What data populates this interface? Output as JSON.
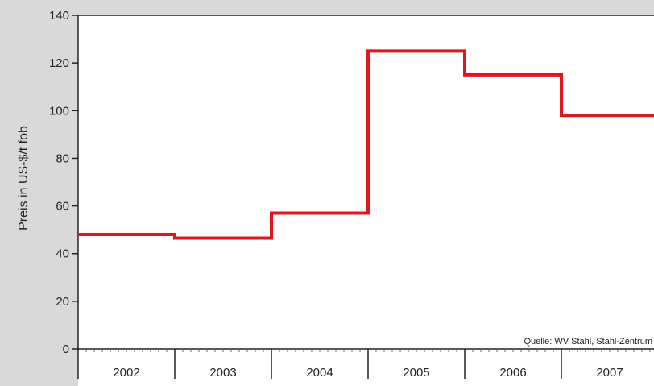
{
  "chart_data": {
    "type": "line",
    "step": true,
    "ylabel": "Preis in US-$/t fob",
    "ylim": [
      0,
      140
    ],
    "yticks": [
      0,
      20,
      40,
      60,
      80,
      100,
      120,
      140
    ],
    "categories": [
      "2002",
      "2003",
      "2004",
      "2005",
      "2006",
      "2007"
    ],
    "series": [
      {
        "values": [
          48,
          46.5,
          57,
          125,
          115,
          98
        ],
        "color": "#e0161e"
      }
    ],
    "annotation": "Quelle: WV Stahl, Stahl-Zentrum",
    "grid": false,
    "plot_background": "#ffffff",
    "page_background": "#d9d9d9"
  }
}
